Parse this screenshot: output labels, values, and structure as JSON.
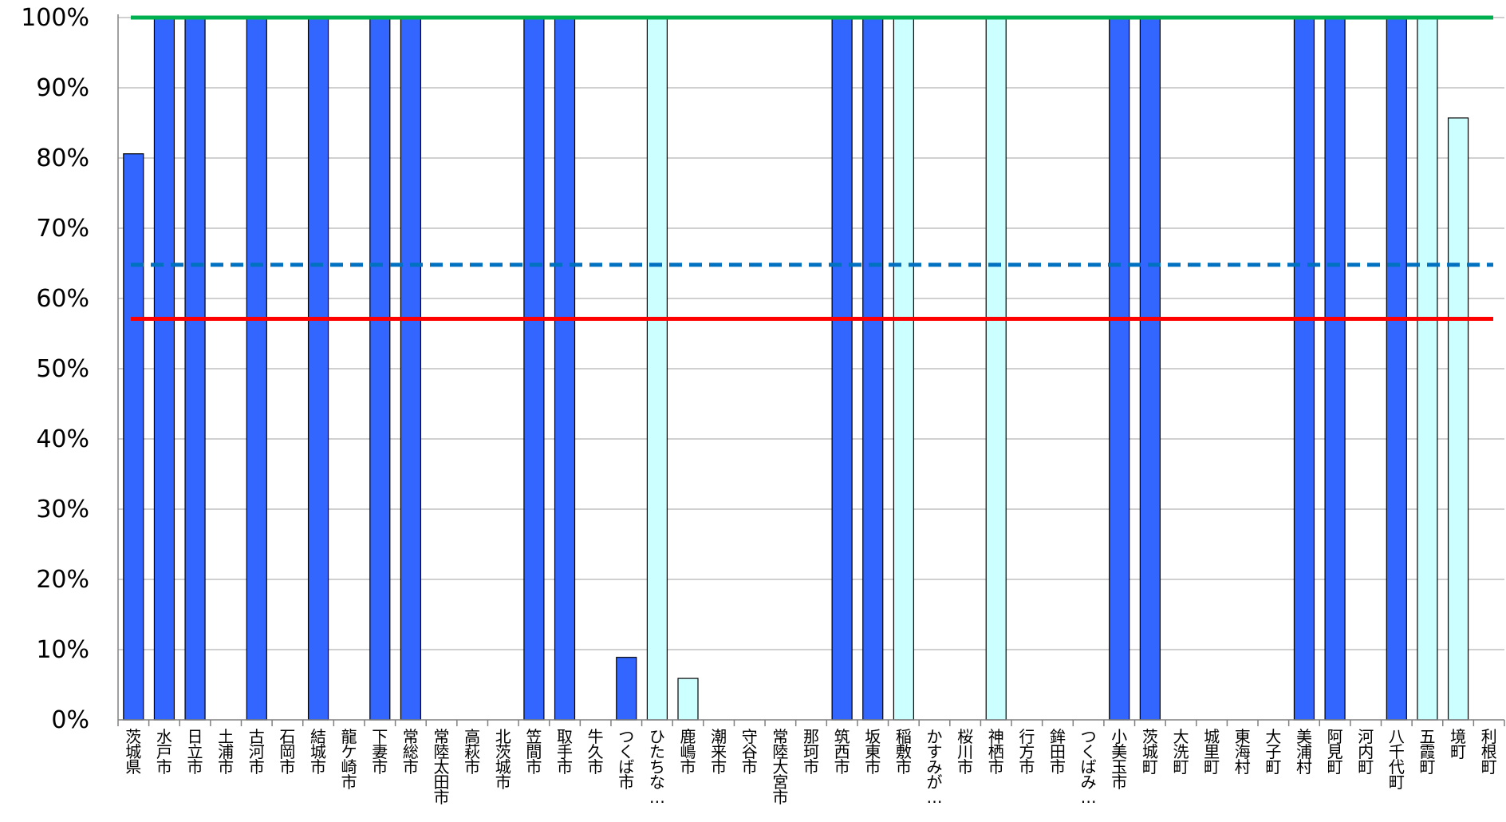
{
  "chart_data": {
    "type": "bar",
    "title": "",
    "xlabel": "",
    "ylabel": "",
    "ylim": [
      0,
      100
    ],
    "yticks": [
      "0%",
      "10%",
      "20%",
      "30%",
      "40%",
      "50%",
      "60%",
      "70%",
      "80%",
      "90%",
      "100%"
    ],
    "grid": true,
    "legend": "none",
    "categories": [
      "茨城県",
      "水戸市",
      "日立市",
      "土浦市",
      "古河市",
      "石岡市",
      "結城市",
      "龍ケ崎市",
      "下妻市",
      "常総市",
      "常陸太田市",
      "高萩市",
      "北茨城市",
      "笠間市",
      "取手市",
      "牛久市",
      "つくば市",
      "ひたちな…",
      "鹿嶋市",
      "潮来市",
      "守谷市",
      "常陸大宮市",
      "那珂市",
      "筑西市",
      "坂東市",
      "稲敷市",
      "かすみが…",
      "桜川市",
      "神栖市",
      "行方市",
      "鉾田市",
      "つくばみ…",
      "小美玉市",
      "茨城町",
      "大洗町",
      "城里町",
      "東海村",
      "大子町",
      "美浦村",
      "阿見町",
      "河内町",
      "八千代町",
      "五霞町",
      "境町",
      "利根町"
    ],
    "values": [
      80.6,
      100,
      100,
      0,
      100,
      0,
      100,
      0,
      100,
      100,
      0,
      0,
      0,
      100,
      100,
      0,
      8.9,
      100,
      5.9,
      0,
      0,
      0,
      0,
      100,
      100,
      100,
      0,
      0,
      100,
      0,
      0,
      0,
      100,
      100,
      0,
      0,
      0,
      0,
      100,
      100,
      0,
      100,
      100,
      85.7,
      0
    ],
    "bar_types": [
      "blue",
      "blue",
      "blue",
      "blue",
      "blue",
      "blue",
      "blue",
      "blue",
      "blue",
      "blue",
      "blue",
      "blue",
      "blue",
      "blue",
      "blue",
      "blue",
      "blue",
      "cyan",
      "cyan",
      "blue",
      "blue",
      "blue",
      "blue",
      "blue",
      "blue",
      "cyan",
      "blue",
      "blue",
      "cyan",
      "blue",
      "blue",
      "blue",
      "blue",
      "blue",
      "blue",
      "blue",
      "blue",
      "blue",
      "blue",
      "blue",
      "blue",
      "blue",
      "cyan",
      "cyan",
      "blue"
    ],
    "reference_lines": [
      {
        "value": 100,
        "color": "#00b050",
        "style": "solid"
      },
      {
        "value": 64.8,
        "color": "#0070c0",
        "style": "dashed"
      },
      {
        "value": 57.1,
        "color": "#ff0000",
        "style": "solid"
      }
    ],
    "colors": {
      "blue": "#3366ff",
      "cyan": "#ccffff",
      "bar_stroke": "#000000",
      "grid": "#c0c0c0",
      "axis": "#808080"
    }
  }
}
